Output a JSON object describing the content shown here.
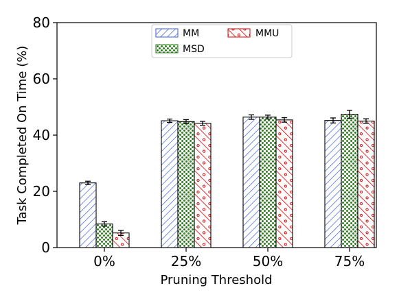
{
  "chart_data": {
    "type": "bar",
    "xlabel": "Pruning Threshold",
    "ylabel": "Task Completed On Time (%)",
    "ylim": [
      0,
      80
    ],
    "yticks": [
      0,
      20,
      40,
      60,
      80
    ],
    "categories": [
      "0%",
      "25%",
      "50%",
      "75%"
    ],
    "series": [
      {
        "name": "MM",
        "values": [
          23.0,
          45.1,
          46.4,
          45.2
        ],
        "errors": [
          0.6,
          0.6,
          0.8,
          0.9
        ],
        "color": "#3b5fd6",
        "fill": "#ffffff",
        "pattern": "diagonal-lines"
      },
      {
        "name": "MSD",
        "values": [
          8.4,
          44.8,
          46.4,
          47.4
        ],
        "errors": [
          0.8,
          0.7,
          0.7,
          1.4
        ],
        "color": "#2e7d1f",
        "fill": "#ffffff",
        "pattern": "dots"
      },
      {
        "name": "MMU",
        "values": [
          5.2,
          44.2,
          45.4,
          45.0
        ],
        "errors": [
          0.9,
          0.7,
          0.8,
          0.8
        ],
        "color": "#e00000",
        "fill": "#ffffff",
        "pattern": "backslash-circles"
      }
    ],
    "legend": {
      "position": "top-center",
      "columns": 2
    },
    "grid": false
  }
}
